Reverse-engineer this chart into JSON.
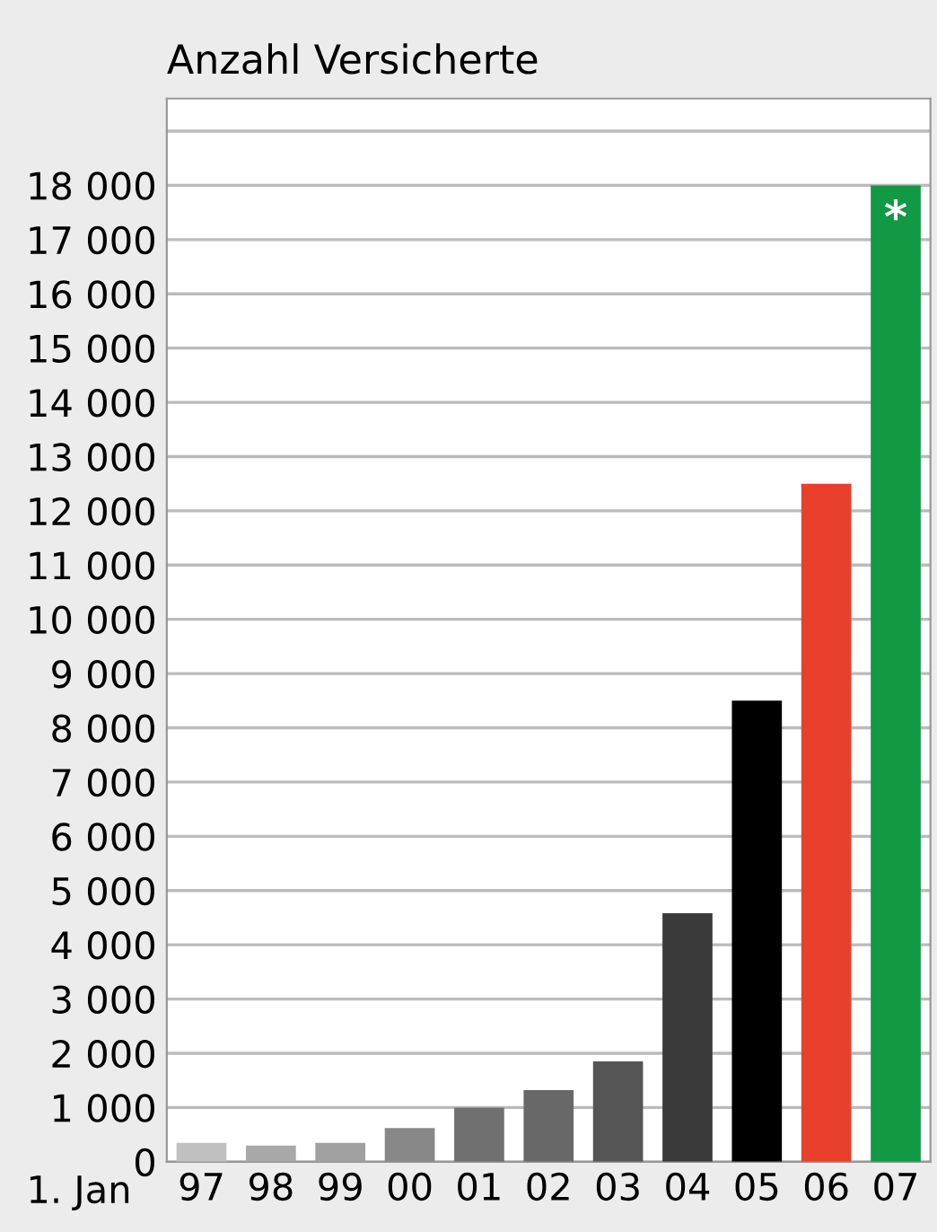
{
  "chart_data": {
    "type": "bar",
    "title": "Anzahl Versicherte",
    "xlabel": "1. Jan",
    "categories": [
      "97",
      "98",
      "99",
      "00",
      "01",
      "02",
      "03",
      "04",
      "05",
      "06",
      "07"
    ],
    "values": [
      350,
      300,
      350,
      620,
      1000,
      1320,
      1850,
      4580,
      8500,
      12500,
      18000
    ],
    "colors": [
      "#c0c0c0",
      "#a8a8a8",
      "#a0a0a0",
      "#888888",
      "#707070",
      "#686868",
      "#555555",
      "#3a3a3a",
      "#000000",
      "#e8402a",
      "#119944"
    ],
    "ylim": [
      0,
      19600
    ],
    "yticks": [
      0,
      {
        "value": 1000,
        "label": "1 000"
      },
      {
        "value": 2000,
        "label": "2 000"
      },
      {
        "value": 3000,
        "label": "3 000"
      },
      {
        "value": 4000,
        "label": "4 000"
      },
      {
        "value": 5000,
        "label": "5 000"
      },
      {
        "value": 6000,
        "label": "6 000"
      },
      {
        "value": 7000,
        "label": "7 000"
      },
      {
        "value": 8000,
        "label": "8 000"
      },
      {
        "value": 9000,
        "label": "9 000"
      },
      {
        "value": 10000,
        "label": "10 000"
      },
      {
        "value": 11000,
        "label": "11 000"
      },
      {
        "value": 12000,
        "label": "12 000"
      },
      {
        "value": 13000,
        "label": "13 000"
      },
      {
        "value": 14000,
        "label": "14 000"
      },
      {
        "value": 15000,
        "label": "15 000"
      },
      {
        "value": 16000,
        "label": "16 000"
      },
      {
        "value": 17000,
        "label": "17 000"
      },
      {
        "value": 18000,
        "label": "18 000"
      },
      {
        "value": 19000,
        "label": null
      }
    ],
    "grid": "y",
    "annotations": [
      {
        "text": "*",
        "x": "07",
        "y": 18000
      }
    ]
  }
}
